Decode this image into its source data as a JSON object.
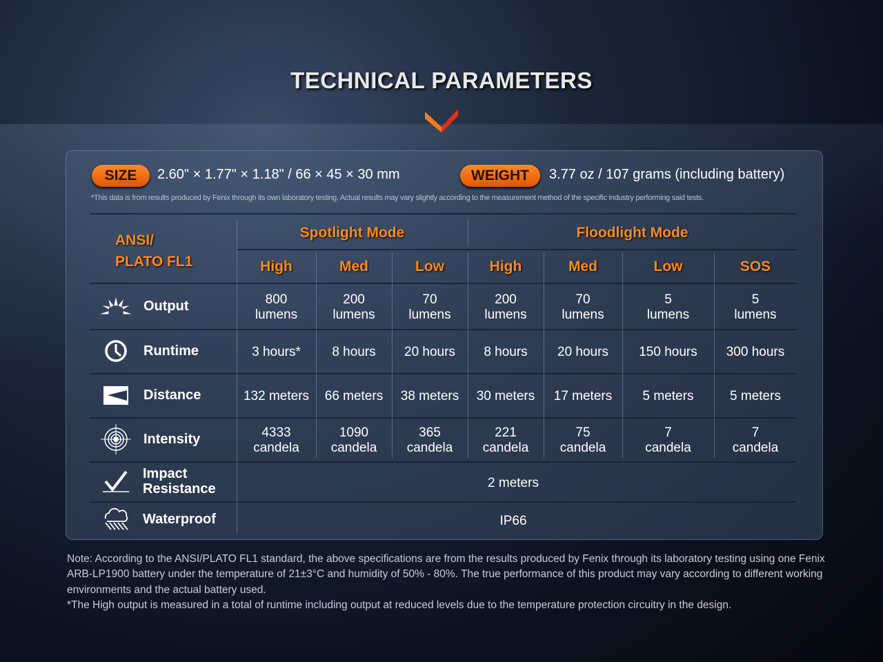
{
  "title": "TECHNICAL PARAMETERS",
  "size": {
    "label": "SIZE",
    "value": "2.60\" × 1.77\" × 1.18\" / 66 × 45 × 30 mm"
  },
  "weight": {
    "label": "WEIGHT",
    "value": "3.77 oz / 107 grams (including battery)"
  },
  "disclaimer": "*This data is from results produced by Fenix through its own laboratory testing. Actual results may vary slightly according to the measurement method of the specific industry performing said tests.",
  "table": {
    "standard_line1": "ANSI/",
    "standard_line2": "PLATO FL1",
    "groups": [
      "Spotlight Mode",
      "Floodlight Mode"
    ],
    "columns": [
      "High",
      "Med",
      "Low",
      "High",
      "Med",
      "Low",
      "SOS"
    ],
    "rows": [
      {
        "label": "Output",
        "icon": "sunburst-icon",
        "values": [
          [
            "800",
            "lumens"
          ],
          [
            "200",
            "lumens"
          ],
          [
            "70",
            "lumens"
          ],
          [
            "200",
            "lumens"
          ],
          [
            "70",
            "lumens"
          ],
          [
            "5",
            "lumens"
          ],
          [
            "5",
            "lumens"
          ]
        ]
      },
      {
        "label": "Runtime",
        "icon": "clock-icon",
        "values": [
          [
            "3 hours*"
          ],
          [
            "8 hours"
          ],
          [
            "20 hours"
          ],
          [
            "8 hours"
          ],
          [
            "20 hours"
          ],
          [
            "150 hours"
          ],
          [
            "300 hours"
          ]
        ]
      },
      {
        "label": "Distance",
        "icon": "distance-beam-icon",
        "values": [
          [
            "132 meters"
          ],
          [
            "66 meters"
          ],
          [
            "38 meters"
          ],
          [
            "30 meters"
          ],
          [
            "17 meters"
          ],
          [
            "5 meters"
          ],
          [
            "5 meters"
          ]
        ]
      },
      {
        "label": "Intensity",
        "icon": "target-icon",
        "values": [
          [
            "4333",
            "candela"
          ],
          [
            "1090",
            "candela"
          ],
          [
            "365",
            "candela"
          ],
          [
            "221",
            "candela"
          ],
          [
            "75",
            "candela"
          ],
          [
            "7",
            "candela"
          ],
          [
            "7",
            "candela"
          ]
        ]
      }
    ],
    "impact": {
      "label_line1": "Impact",
      "label_line2": "Resistance",
      "icon": "impact-check-icon",
      "value": "2 meters"
    },
    "waterproof": {
      "label": "Waterproof",
      "icon": "rain-cloud-icon",
      "value": "IP66"
    }
  },
  "notes": [
    "Note: According to the ANSI/PLATO FL1 standard, the above specifications are from the results produced by Fenix through its laboratory testing using one Fenix ARB-LP1900 battery under the temperature of 21±3°C and humidity of 50% - 80%. The true performance of this product may vary according to different working environments and the actual battery used.",
    "*The High output is measured in a total of runtime including output at reduced levels due to the temperature protection circuitry in the design."
  ],
  "colors": {
    "accent": "#ff8a1c",
    "pill": "#f06a10"
  }
}
